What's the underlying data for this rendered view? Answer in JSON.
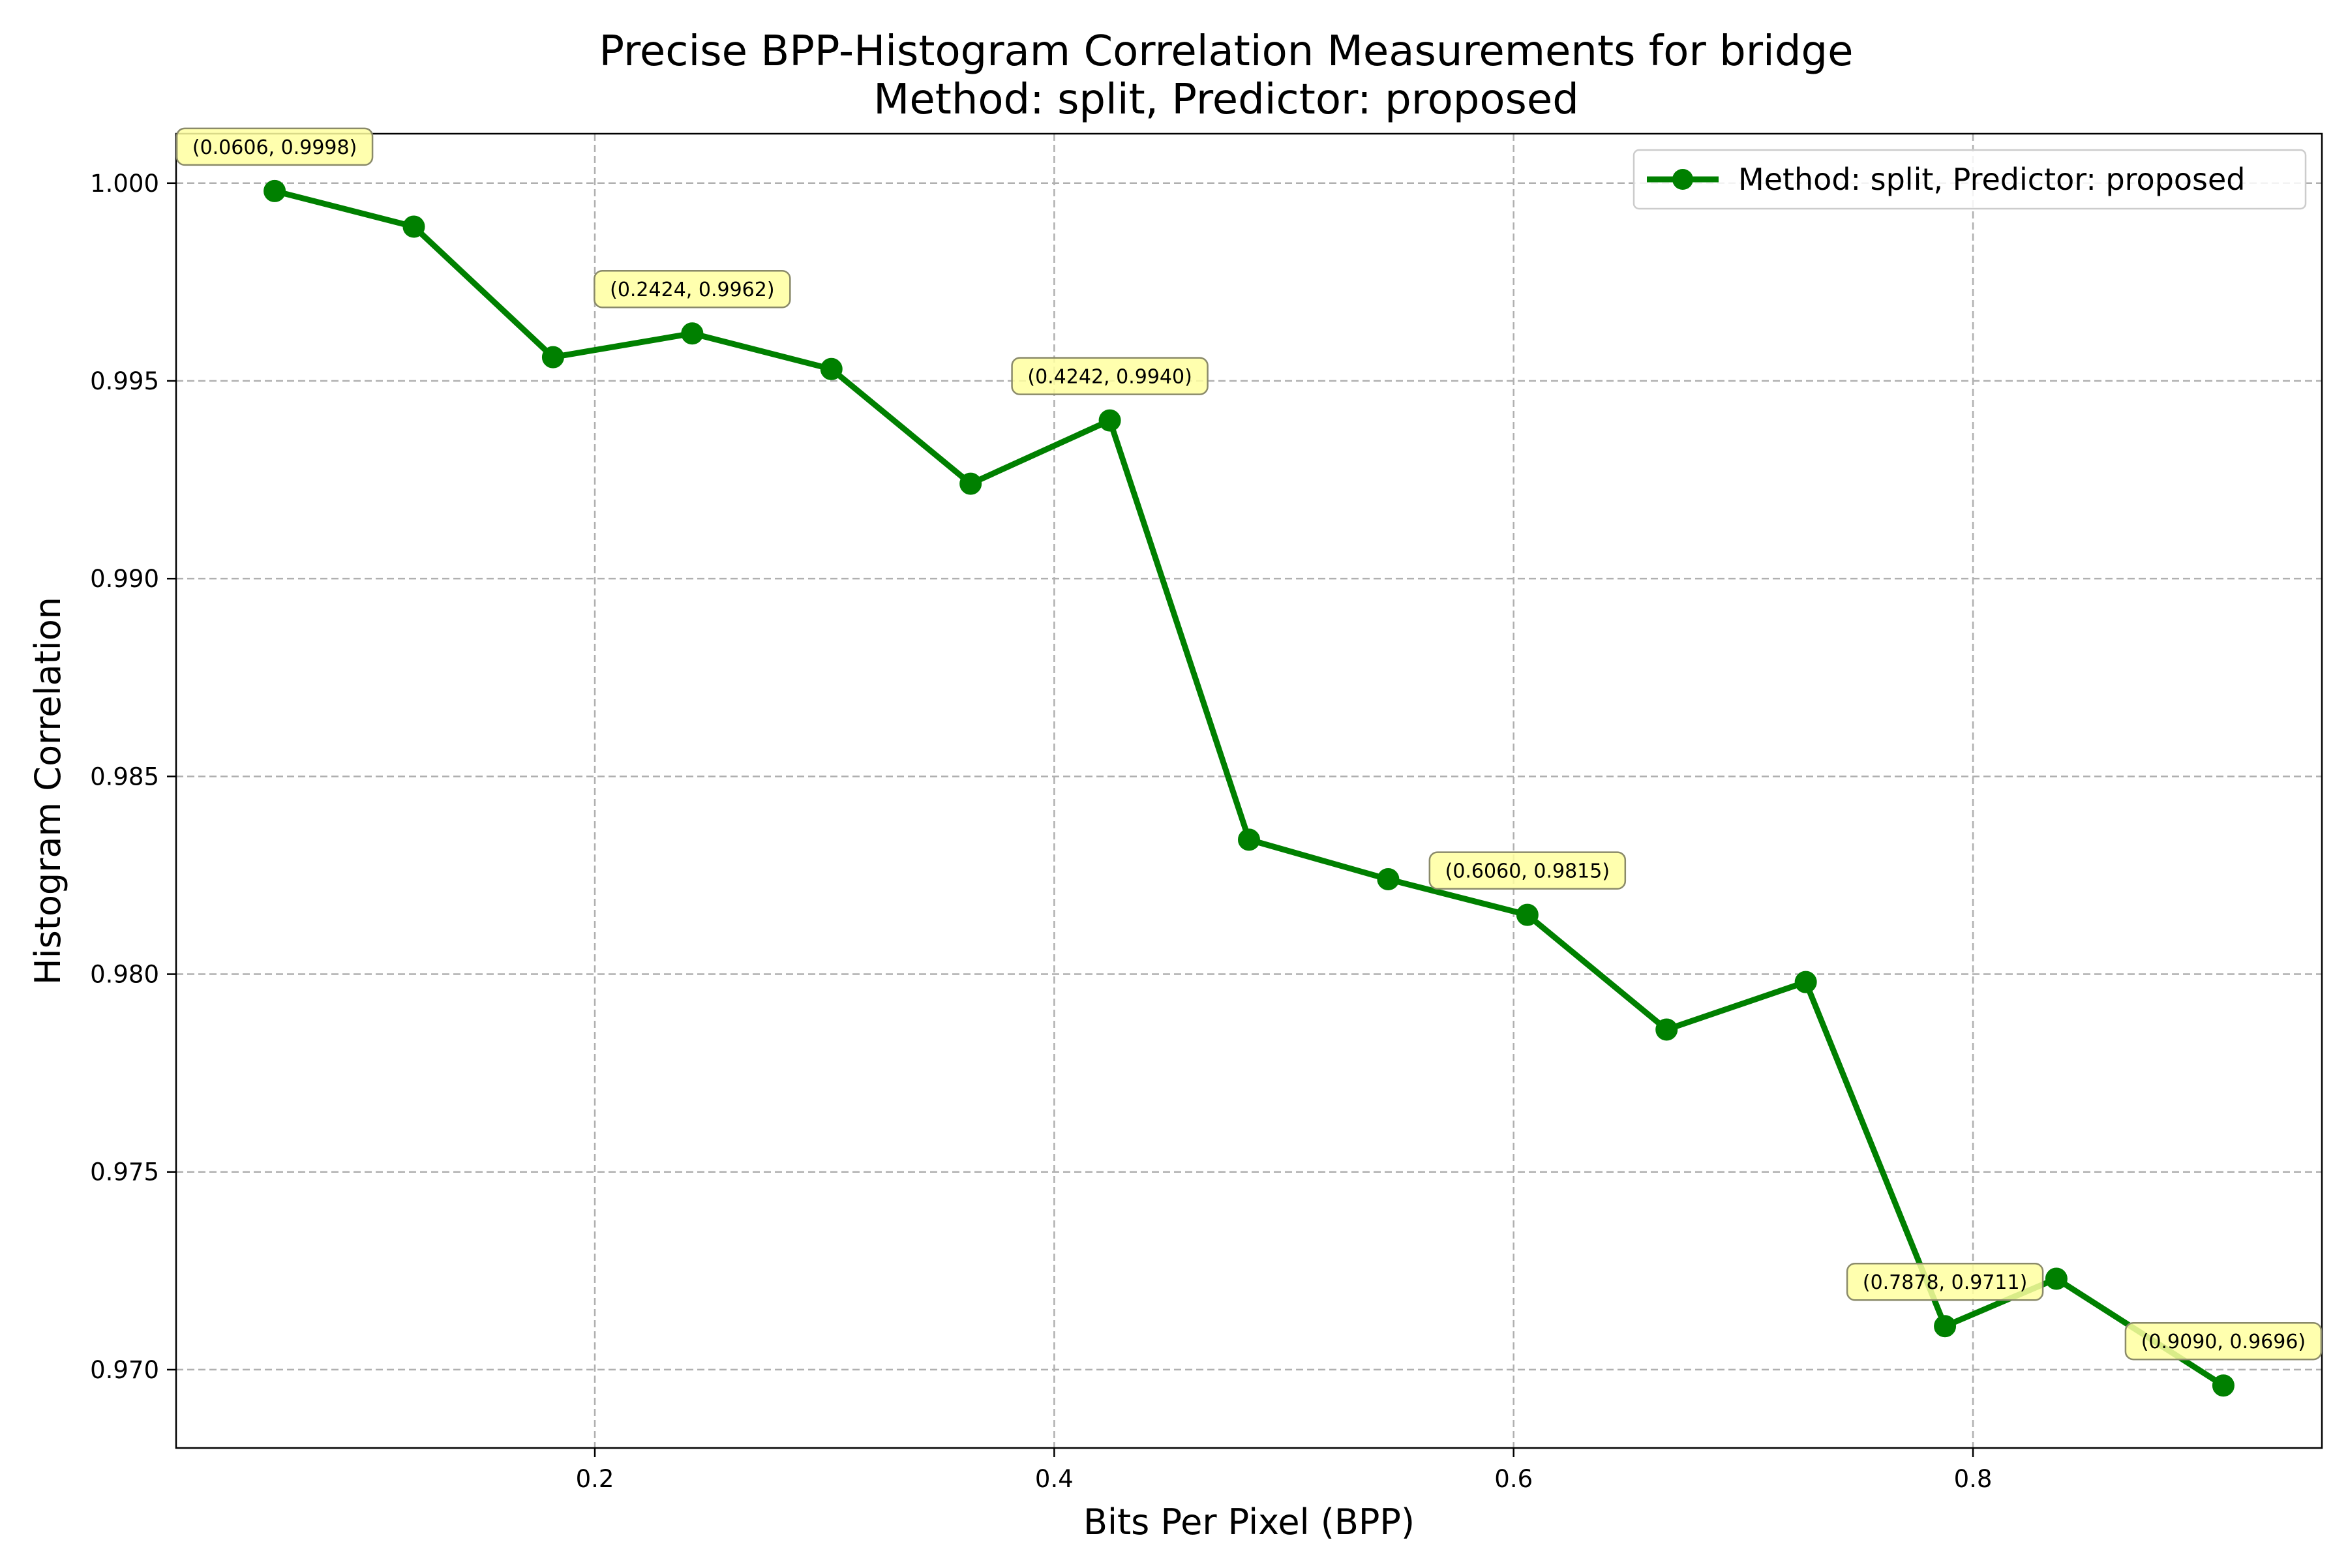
{
  "chart_data": {
    "type": "line",
    "title": [
      "Precise BPP-Histogram Correlation Measurements for bridge",
      "Method: split, Predictor: proposed"
    ],
    "xlabel": "Bits Per Pixel (BPP)",
    "ylabel": "Histogram Correlation",
    "xlim": [
      0.0177,
      0.9519
    ],
    "ylim": [
      0.96802,
      1.00125
    ],
    "xticks": [
      0.2,
      0.4,
      0.6,
      0.8
    ],
    "xtick_labels": [
      "0.2",
      "0.4",
      "0.6",
      "0.8"
    ],
    "yticks": [
      0.97,
      0.975,
      0.98,
      0.985,
      0.99,
      0.995,
      1.0
    ],
    "ytick_labels": [
      "0.970",
      "0.975",
      "0.980",
      "0.985",
      "0.990",
      "0.995",
      "1.000"
    ],
    "grid": true,
    "legend_position": "top-right",
    "series": [
      {
        "name": "Method: split, Predictor: proposed",
        "color": "#008000",
        "marker": "circle",
        "x": [
          0.0606,
          0.1212,
          0.1818,
          0.2424,
          0.303,
          0.3636,
          0.4242,
          0.4848,
          0.5454,
          0.606,
          0.6666,
          0.7272,
          0.7878,
          0.8363,
          0.909
        ],
        "y": [
          0.9998,
          0.9989,
          0.9956,
          0.9962,
          0.9953,
          0.9924,
          0.994,
          0.9834,
          0.9824,
          0.9815,
          0.9786,
          0.9798,
          0.9711,
          0.9723,
          0.9696
        ]
      }
    ],
    "annotations": [
      {
        "text": "(0.0606, 0.9998)",
        "x": 0.0606,
        "y": 0.9998
      },
      {
        "text": "(0.2424, 0.9962)",
        "x": 0.2424,
        "y": 0.9962
      },
      {
        "text": "(0.4242, 0.9940)",
        "x": 0.4242,
        "y": 0.994
      },
      {
        "text": "(0.6060, 0.9815)",
        "x": 0.606,
        "y": 0.9815
      },
      {
        "text": "(0.7878, 0.9711)",
        "x": 0.7878,
        "y": 0.9711
      },
      {
        "text": "(0.9090, 0.9696)",
        "x": 0.909,
        "y": 0.9696
      }
    ],
    "colors": {
      "grid": "#b0b0b0",
      "annotation_fill": "#ffffa0",
      "annotation_border": "#8a8a6a"
    }
  }
}
